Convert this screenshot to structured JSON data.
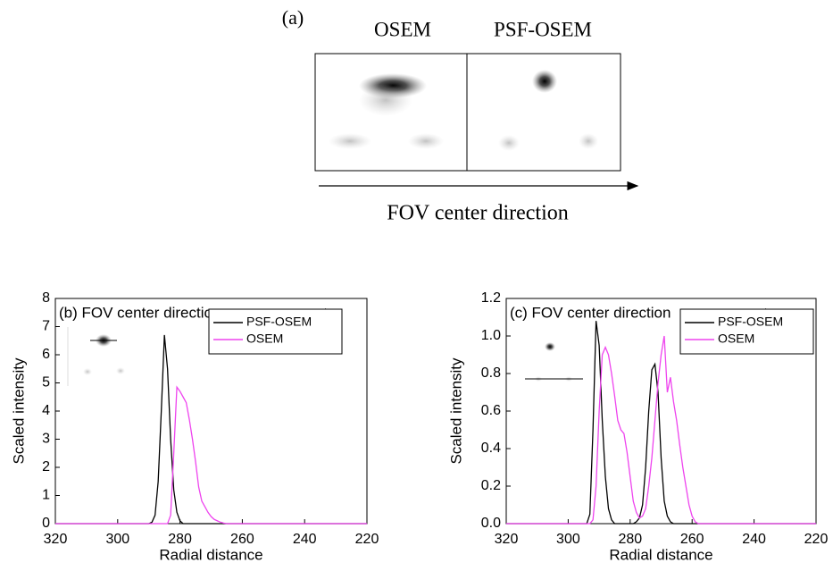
{
  "panel_a": {
    "label": "(a)",
    "titles": [
      "OSEM",
      "PSF-OSEM"
    ],
    "direction": "FOV center direction"
  },
  "chart_data": [
    {
      "type": "line",
      "annotation": "(b) FOV  center direction",
      "xlabel": "Radial distance",
      "ylabel": "Scaled intensity",
      "x": [
        320,
        290,
        289,
        288,
        287,
        286,
        285,
        284,
        283,
        282,
        281,
        280,
        279,
        278,
        277,
        276,
        275,
        274,
        273,
        272,
        271,
        270,
        269,
        268,
        267,
        266,
        265,
        264,
        220
      ],
      "series": [
        {
          "name": "PSF-OSEM",
          "color": "#000000",
          "values": [
            0,
            0,
            0.05,
            0.3,
            1.5,
            4.0,
            6.7,
            5.5,
            3.0,
            1.2,
            0.4,
            0.1,
            0,
            0,
            0,
            0,
            0,
            0,
            0,
            0,
            0,
            0,
            0,
            0,
            0,
            0,
            0,
            0,
            0
          ]
        },
        {
          "name": "OSEM",
          "color": "#ee44ee",
          "values": [
            0,
            0,
            0,
            0,
            0,
            0,
            0,
            0,
            0.3,
            2.5,
            4.85,
            4.7,
            4.5,
            4.3,
            3.7,
            3.0,
            2.2,
            1.3,
            0.8,
            0.6,
            0.4,
            0.25,
            0.15,
            0.1,
            0.05,
            0.02,
            0,
            0,
            0
          ]
        }
      ],
      "xlim": [
        320,
        220
      ],
      "ylim": [
        0,
        8
      ],
      "xticks": [
        320,
        300,
        280,
        260,
        240,
        220
      ],
      "yticks": [
        0,
        1,
        2,
        3,
        4,
        5,
        6,
        7,
        8
      ],
      "legend": "upper right"
    },
    {
      "type": "line",
      "annotation": "(c)  FOV center direction",
      "xlabel": "Radial distance",
      "ylabel": "Scaled intensity",
      "x": [
        320,
        295,
        294,
        293,
        292,
        291,
        290,
        289,
        288,
        287,
        286,
        285,
        284,
        283,
        282,
        281,
        280,
        279,
        278,
        277,
        276,
        275,
        274,
        273,
        272,
        271,
        270,
        269,
        268,
        267,
        266,
        265,
        264,
        263,
        262,
        261,
        260,
        259,
        258,
        220
      ],
      "series": [
        {
          "name": "PSF-OSEM",
          "color": "#000000",
          "values": [
            0,
            0,
            0,
            0.05,
            0.5,
            1.08,
            0.95,
            0.55,
            0.25,
            0.08,
            0.02,
            0,
            0,
            0,
            0,
            0,
            0,
            0,
            0.01,
            0.03,
            0.1,
            0.3,
            0.6,
            0.82,
            0.85,
            0.7,
            0.35,
            0.12,
            0.04,
            0.01,
            0,
            0,
            0,
            0,
            0,
            0,
            0,
            0,
            0,
            0
          ]
        },
        {
          "name": "OSEM",
          "color": "#ee44ee",
          "values": [
            0,
            0,
            0,
            0,
            0.02,
            0.2,
            0.6,
            0.9,
            0.94,
            0.9,
            0.8,
            0.68,
            0.55,
            0.5,
            0.48,
            0.38,
            0.25,
            0.12,
            0.06,
            0.03,
            0.04,
            0.08,
            0.2,
            0.35,
            0.55,
            0.75,
            0.9,
            1.0,
            0.7,
            0.78,
            0.65,
            0.55,
            0.42,
            0.3,
            0.2,
            0.1,
            0.04,
            0.01,
            0,
            0
          ]
        }
      ],
      "xlim": [
        320,
        220
      ],
      "ylim": [
        0,
        1.2
      ],
      "xticks": [
        320,
        300,
        280,
        260,
        240,
        220
      ],
      "yticks": [
        {
          "value": 0,
          "label": "0.0"
        },
        0.2,
        0.4,
        0.6,
        0.8,
        {
          "value": 1,
          "label": "1.0"
        },
        1.2
      ],
      "legend": "upper right"
    }
  ]
}
